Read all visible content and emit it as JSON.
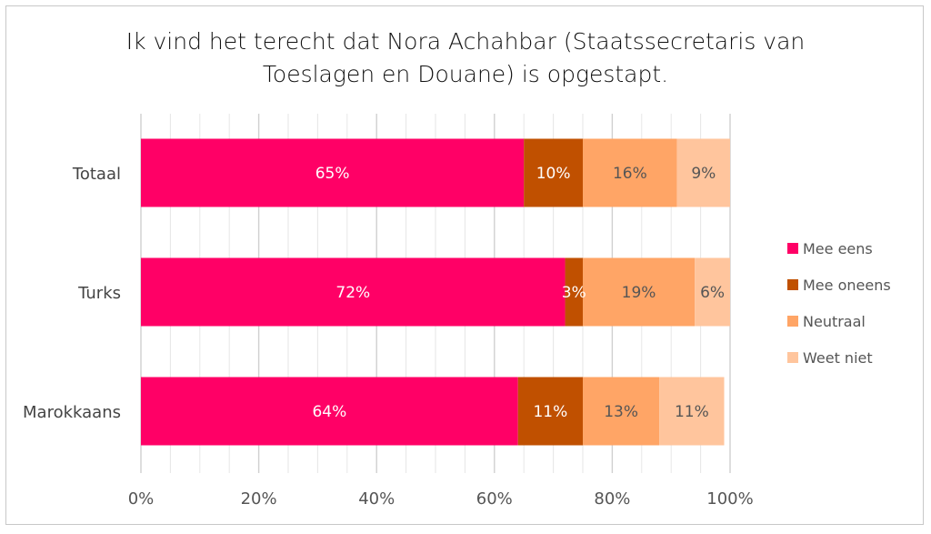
{
  "chart_data": {
    "type": "bar",
    "orientation": "horizontal",
    "stacked": "percent",
    "title": "Ik vind het terecht dat Nora Achahbar (Staatssecretaris van Toeslagen en Douane) is opgestapt.",
    "title_lines": [
      "Ik vind het terecht dat Nora Achahbar (Staatssecretaris van",
      "Toeslagen en Douane) is opgestapt."
    ],
    "categories": [
      "Totaal",
      "Turks",
      "Marokkaans"
    ],
    "series": [
      {
        "name": "Mee eens",
        "color": "#ff0066",
        "label_color": "#ffffff",
        "values": [
          65,
          72,
          64
        ],
        "labels": [
          "65%",
          "72%",
          "64%"
        ]
      },
      {
        "name": "Mee oneens",
        "color": "#c05000",
        "label_color": "#ffffff",
        "values": [
          10,
          3,
          11
        ],
        "labels": [
          "10%",
          "3%",
          "11%"
        ]
      },
      {
        "name": "Neutraal",
        "color": "#ffa566",
        "label_color": "#555555",
        "values": [
          16,
          19,
          13
        ],
        "labels": [
          "16%",
          "19%",
          "13%"
        ]
      },
      {
        "name": "Weet niet",
        "color": "#ffc59d",
        "label_color": "#555555",
        "values": [
          9,
          6,
          11
        ],
        "labels": [
          "9%",
          "6%",
          "11%"
        ]
      }
    ],
    "xlim": [
      0,
      100
    ],
    "xticks": [
      "0%",
      "20%",
      "40%",
      "60%",
      "80%",
      "100%"
    ],
    "grid": true,
    "legend_position": "right"
  }
}
